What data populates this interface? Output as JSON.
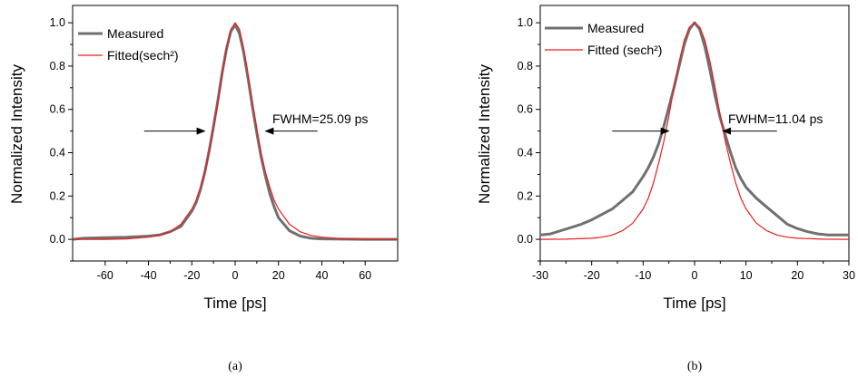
{
  "chart_data": [
    {
      "type": "line",
      "panel_label": "(a)",
      "xlabel": "Time [ps]",
      "ylabel": "Normalized Intensity",
      "xlim": [
        -75,
        75
      ],
      "ylim": [
        -0.1,
        1.08
      ],
      "xticks": [
        -60,
        -40,
        -20,
        0,
        20,
        40,
        60
      ],
      "xtick_labels": [
        "-60",
        "-40",
        "-20",
        "0",
        "20",
        "40",
        "60"
      ],
      "yticks": [
        0.0,
        0.2,
        0.4,
        0.6,
        0.8,
        1.0
      ],
      "ytick_labels": [
        "0.0",
        "0.2",
        "0.4",
        "0.6",
        "0.8",
        "1.0"
      ],
      "legend_position": "top-left",
      "series": [
        {
          "name": "Measured",
          "color": "#707070",
          "x": [
            -75,
            -70,
            -60,
            -50,
            -40,
            -35,
            -30,
            -25,
            -20,
            -18,
            -16,
            -14,
            -12,
            -10,
            -8,
            -6,
            -4,
            -2,
            0,
            2,
            4,
            6,
            8,
            10,
            12,
            14,
            16,
            18,
            20,
            25,
            30,
            35,
            40,
            50,
            60,
            70,
            75
          ],
          "y": [
            0.0,
            0.005,
            0.008,
            0.01,
            0.015,
            0.02,
            0.035,
            0.06,
            0.13,
            0.17,
            0.23,
            0.31,
            0.41,
            0.52,
            0.64,
            0.77,
            0.88,
            0.96,
            0.99,
            0.95,
            0.86,
            0.74,
            0.61,
            0.49,
            0.38,
            0.29,
            0.21,
            0.15,
            0.1,
            0.04,
            0.015,
            0.005,
            0.002,
            0.001,
            0.0,
            0.0,
            0.0
          ]
        },
        {
          "name": "Fitted(sech²)",
          "color": "#ee1c1c",
          "x": [
            -75,
            -60,
            -50,
            -40,
            -35,
            -30,
            -25,
            -20,
            -18,
            -16,
            -14,
            -12,
            -10,
            -8,
            -6,
            -4,
            -2,
            0,
            2,
            4,
            6,
            8,
            10,
            12,
            14,
            16,
            18,
            20,
            25,
            30,
            35,
            40,
            50,
            60,
            75
          ],
          "y": [
            0.0,
            0.0,
            0.002,
            0.01,
            0.018,
            0.035,
            0.07,
            0.14,
            0.18,
            0.24,
            0.31,
            0.4,
            0.51,
            0.63,
            0.76,
            0.88,
            0.97,
            1.0,
            0.97,
            0.88,
            0.76,
            0.63,
            0.51,
            0.4,
            0.31,
            0.24,
            0.18,
            0.14,
            0.07,
            0.035,
            0.018,
            0.01,
            0.002,
            0.0,
            0.0
          ]
        }
      ],
      "annotations": [
        {
          "text": "FWHM=25.09 ps"
        }
      ],
      "fwhm_arrows": {
        "y": 0.5,
        "left_x": [
          -42,
          -14
        ],
        "right_x": [
          38,
          14
        ]
      }
    },
    {
      "type": "line",
      "panel_label": "(b)",
      "xlabel": "Time [ps]",
      "ylabel": "Normalized Intensity",
      "xlim": [
        -30,
        30
      ],
      "ylim": [
        -0.1,
        1.08
      ],
      "xticks": [
        -30,
        -20,
        -10,
        0,
        10,
        20,
        30
      ],
      "xtick_labels": [
        "-30",
        "-20",
        "-10",
        "0",
        "10",
        "20",
        "30"
      ],
      "yticks": [
        0.0,
        0.2,
        0.4,
        0.6,
        0.8,
        1.0
      ],
      "ytick_labels": [
        "0.0",
        "0.2",
        "0.4",
        "0.6",
        "0.8",
        "1.0"
      ],
      "legend_position": "top-left",
      "series": [
        {
          "name": "Measured",
          "color": "#707070",
          "x": [
            -30,
            -28,
            -26,
            -24,
            -22,
            -20,
            -18,
            -16,
            -14,
            -12,
            -10,
            -9,
            -8,
            -7,
            -6,
            -5,
            -4,
            -3,
            -2,
            -1,
            0,
            1,
            2,
            3,
            4,
            5,
            6,
            7,
            8,
            9,
            10,
            12,
            14,
            16,
            18,
            20,
            22,
            24,
            26,
            28,
            30
          ],
          "y": [
            0.02,
            0.025,
            0.04,
            0.055,
            0.07,
            0.09,
            0.115,
            0.14,
            0.18,
            0.22,
            0.29,
            0.33,
            0.38,
            0.44,
            0.52,
            0.61,
            0.7,
            0.8,
            0.9,
            0.97,
            1.0,
            0.97,
            0.89,
            0.78,
            0.66,
            0.56,
            0.48,
            0.4,
            0.33,
            0.28,
            0.24,
            0.19,
            0.15,
            0.11,
            0.07,
            0.05,
            0.035,
            0.025,
            0.02,
            0.02,
            0.02
          ]
        },
        {
          "name": "Fitted (sech²)",
          "color": "#ee1c1c",
          "x": [
            -30,
            -25,
            -20,
            -18,
            -16,
            -14,
            -12,
            -10,
            -9,
            -8,
            -7,
            -6,
            -5,
            -4,
            -3,
            -2,
            -1,
            0,
            1,
            2,
            3,
            4,
            5,
            6,
            7,
            8,
            9,
            10,
            12,
            14,
            16,
            18,
            20,
            25,
            30
          ],
          "y": [
            0.0,
            0.001,
            0.005,
            0.01,
            0.02,
            0.04,
            0.075,
            0.14,
            0.19,
            0.26,
            0.35,
            0.45,
            0.57,
            0.7,
            0.82,
            0.92,
            0.98,
            1.0,
            0.98,
            0.92,
            0.82,
            0.7,
            0.57,
            0.45,
            0.35,
            0.26,
            0.19,
            0.14,
            0.075,
            0.04,
            0.02,
            0.01,
            0.005,
            0.001,
            0.0
          ]
        }
      ],
      "annotations": [
        {
          "text": "FWHM=11.04 ps"
        }
      ],
      "fwhm_arrows": {
        "y": 0.5,
        "left_x": [
          -16,
          -5
        ],
        "right_x": [
          16,
          5.5
        ]
      }
    }
  ]
}
